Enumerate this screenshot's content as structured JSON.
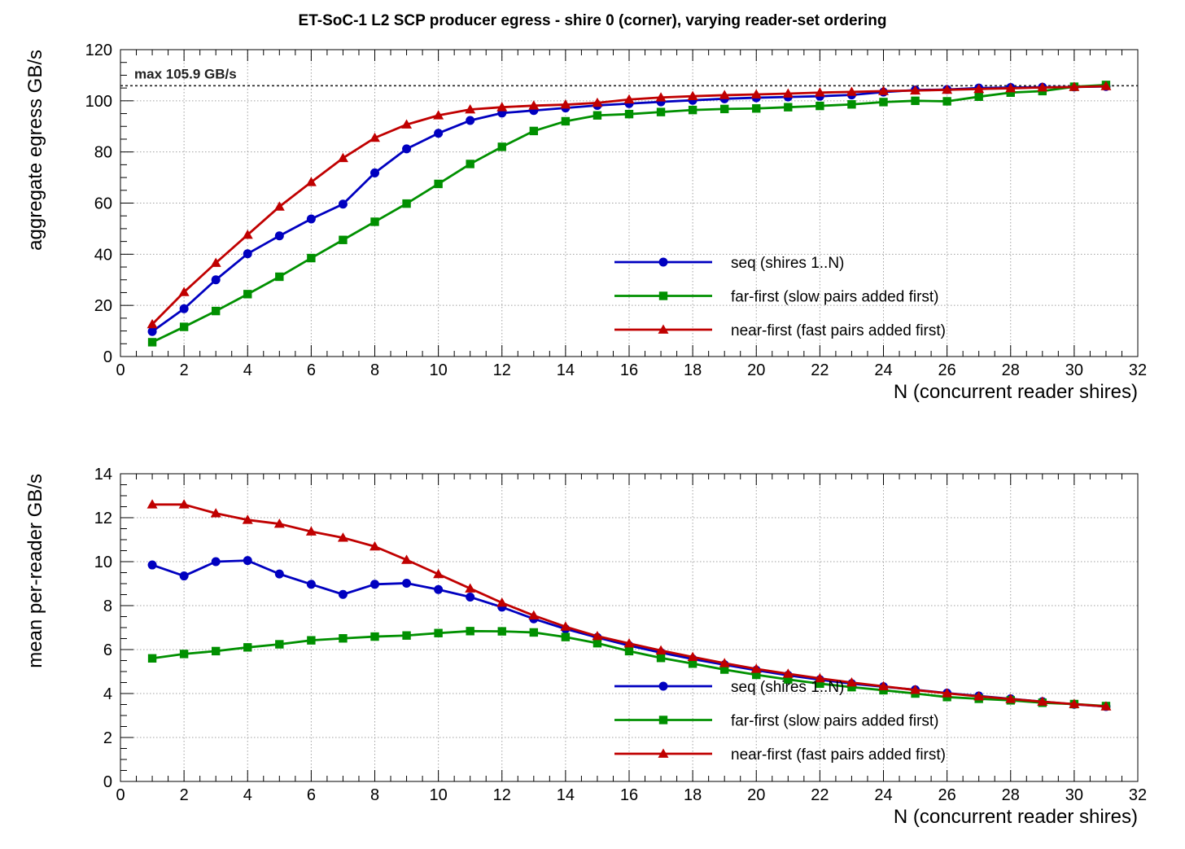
{
  "figure": {
    "title": "ET-SoC-1 L2 SCP producer egress  -  shire 0 (corner), varying reader-set ordering"
  },
  "colors": {
    "seq": "#0000c0",
    "far": "#009000",
    "near": "#c00000",
    "grid": "#a0a0a0",
    "frame": "#000000"
  },
  "chart_data": [
    {
      "type": "line",
      "title": "ET-SoC-1 L2 SCP producer egress  -  shire 0 (corner), varying reader-set ordering",
      "xlabel": "N (concurrent reader shires)",
      "ylabel": "aggregate egress GB/s",
      "xlim": [
        0,
        32
      ],
      "ylim": [
        0,
        120
      ],
      "xticks": [
        0,
        2,
        4,
        6,
        8,
        10,
        12,
        14,
        16,
        18,
        20,
        22,
        24,
        26,
        28,
        30,
        32
      ],
      "yticks": [
        0,
        20,
        40,
        60,
        80,
        100,
        120
      ],
      "grid": true,
      "legend_position": "bottom-right",
      "reference_line": {
        "value": 105.9,
        "label": "max 105.9 GB/s"
      },
      "x": [
        1,
        2,
        3,
        4,
        5,
        6,
        7,
        8,
        9,
        10,
        11,
        12,
        13,
        14,
        15,
        16,
        17,
        18,
        19,
        20,
        21,
        22,
        23,
        24,
        25,
        26,
        27,
        28,
        29,
        30,
        31
      ],
      "series": [
        {
          "name": "seq (shires 1..N)",
          "key": "seq",
          "marker": "circle",
          "values": [
            9.8,
            18.7,
            30.0,
            40.2,
            47.2,
            53.8,
            59.6,
            71.8,
            81.2,
            87.3,
            92.3,
            95.2,
            96.2,
            97.2,
            98.2,
            98.9,
            99.6,
            100.2,
            100.8,
            101.2,
            101.5,
            101.8,
            102.3,
            103.4,
            104.2,
            104.4,
            105.0,
            105.2,
            105.3,
            105.4,
            105.6
          ]
        },
        {
          "name": "far-first (slow pairs added first)",
          "key": "far",
          "marker": "square",
          "values": [
            5.6,
            11.6,
            17.8,
            24.4,
            31.2,
            38.5,
            45.6,
            52.7,
            59.8,
            67.5,
            75.3,
            82.0,
            88.2,
            92.0,
            94.3,
            94.8,
            95.6,
            96.4,
            96.8,
            97.0,
            97.5,
            98.0,
            98.6,
            99.5,
            100.0,
            99.8,
            101.6,
            103.2,
            103.8,
            105.5,
            106.2
          ]
        },
        {
          "name": "near-first (fast pairs added first)",
          "key": "near",
          "marker": "triangle",
          "values": [
            12.6,
            25.2,
            36.6,
            47.6,
            58.6,
            68.2,
            77.6,
            85.5,
            90.7,
            94.3,
            96.6,
            97.5,
            98.1,
            98.5,
            99.2,
            100.5,
            101.3,
            101.8,
            102.2,
            102.5,
            102.8,
            103.2,
            103.5,
            103.8,
            104.0,
            104.3,
            104.6,
            104.9,
            105.2,
            105.4,
            105.7
          ]
        }
      ]
    },
    {
      "type": "line",
      "title": "",
      "xlabel": "N (concurrent reader shires)",
      "ylabel": "mean per-reader GB/s",
      "xlim": [
        0,
        32
      ],
      "ylim": [
        0,
        14
      ],
      "xticks": [
        0,
        2,
        4,
        6,
        8,
        10,
        12,
        14,
        16,
        18,
        20,
        22,
        24,
        26,
        28,
        30,
        32
      ],
      "yticks": [
        0,
        2,
        4,
        6,
        8,
        10,
        12,
        14
      ],
      "grid": true,
      "legend_position": "bottom-right",
      "x": [
        1,
        2,
        3,
        4,
        5,
        6,
        7,
        8,
        9,
        10,
        11,
        12,
        13,
        14,
        15,
        16,
        17,
        18,
        19,
        20,
        21,
        22,
        23,
        24,
        25,
        26,
        27,
        28,
        29,
        30,
        31
      ],
      "series": [
        {
          "name": "seq (shires 1..N)",
          "key": "seq",
          "marker": "circle",
          "values": [
            9.85,
            9.35,
            10.0,
            10.05,
            9.44,
            8.97,
            8.51,
            8.97,
            9.02,
            8.73,
            8.39,
            7.93,
            7.4,
            6.94,
            6.55,
            6.18,
            5.86,
            5.57,
            5.31,
            5.06,
            4.83,
            4.63,
            4.45,
            4.31,
            4.17,
            4.02,
            3.89,
            3.76,
            3.63,
            3.51,
            3.41
          ]
        },
        {
          "name": "far-first (slow pairs added first)",
          "key": "far",
          "marker": "square",
          "values": [
            5.6,
            5.8,
            5.93,
            6.1,
            6.24,
            6.42,
            6.51,
            6.59,
            6.64,
            6.75,
            6.84,
            6.83,
            6.78,
            6.57,
            6.29,
            5.93,
            5.62,
            5.36,
            5.09,
            4.85,
            4.64,
            4.45,
            4.29,
            4.15,
            4.0,
            3.84,
            3.76,
            3.69,
            3.58,
            3.52,
            3.43
          ]
        },
        {
          "name": "near-first (fast pairs added first)",
          "key": "near",
          "marker": "triangle",
          "values": [
            12.6,
            12.6,
            12.2,
            11.9,
            11.72,
            11.37,
            11.09,
            10.69,
            10.08,
            9.43,
            8.78,
            8.13,
            7.55,
            7.04,
            6.61,
            6.28,
            5.96,
            5.66,
            5.38,
            5.12,
            4.9,
            4.69,
            4.5,
            4.33,
            4.16,
            4.01,
            3.87,
            3.75,
            3.63,
            3.52,
            3.41
          ]
        }
      ]
    }
  ]
}
